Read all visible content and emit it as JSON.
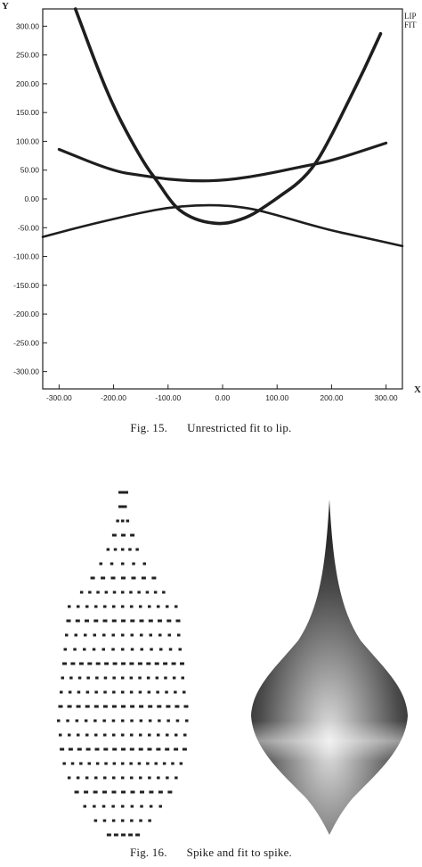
{
  "figure15": {
    "caption_number": "Fig. 15.",
    "caption_text": "Unrestricted fit to lip.",
    "y_axis_letter": "Y",
    "x_axis_letter": "X",
    "legend": [
      "LIP",
      "FIT"
    ],
    "chart_data": {
      "type": "line",
      "title": "",
      "xlabel": "X",
      "ylabel": "Y",
      "xlim": [
        -330,
        330
      ],
      "ylim": [
        -330,
        330
      ],
      "x_ticks": [
        "-300.00",
        "-200.00",
        "-100.00",
        "0.00",
        "100.00",
        "200.00",
        "300.00"
      ],
      "y_ticks": [
        "300.00",
        "250.00",
        "200.00",
        "150.00",
        "100.00",
        "50.00",
        "0.00",
        "-50.00",
        "-100.00",
        "-150.00",
        "-200.00",
        "-250.00",
        "-300.00"
      ],
      "series": [
        {
          "name": "LIP",
          "x": [
            -300,
            -200,
            -150,
            -100,
            -50,
            0,
            50,
            100,
            150,
            200,
            300
          ],
          "y": [
            86,
            48,
            41,
            34,
            31,
            32,
            38,
            47,
            57,
            66,
            97
          ]
        },
        {
          "name": "",
          "x": [
            -330,
            -250,
            -200,
            -150,
            -100,
            -50,
            0,
            50,
            100,
            150,
            200,
            250,
            330
          ],
          "y": [
            -66,
            -46,
            -35,
            -24,
            -15,
            -11,
            -11,
            -16,
            -28,
            -42,
            -55,
            -65,
            -82
          ]
        },
        {
          "name": "FIT",
          "x": [
            -270,
            -230,
            -200,
            -170,
            -140,
            -120,
            -100,
            -80,
            -50,
            -20,
            0,
            20,
            50,
            80,
            110,
            140,
            170,
            200,
            230,
            260,
            290
          ],
          "y": [
            330,
            228,
            160,
            105,
            56,
            31,
            2,
            -20,
            -36,
            -42,
            -43,
            -40,
            -30,
            -12,
            8,
            28,
            59,
            110,
            168,
            225,
            287
          ]
        }
      ]
    }
  },
  "figure16": {
    "caption_number": "Fig. 16.",
    "caption_text": "Spike and fit to spike."
  }
}
